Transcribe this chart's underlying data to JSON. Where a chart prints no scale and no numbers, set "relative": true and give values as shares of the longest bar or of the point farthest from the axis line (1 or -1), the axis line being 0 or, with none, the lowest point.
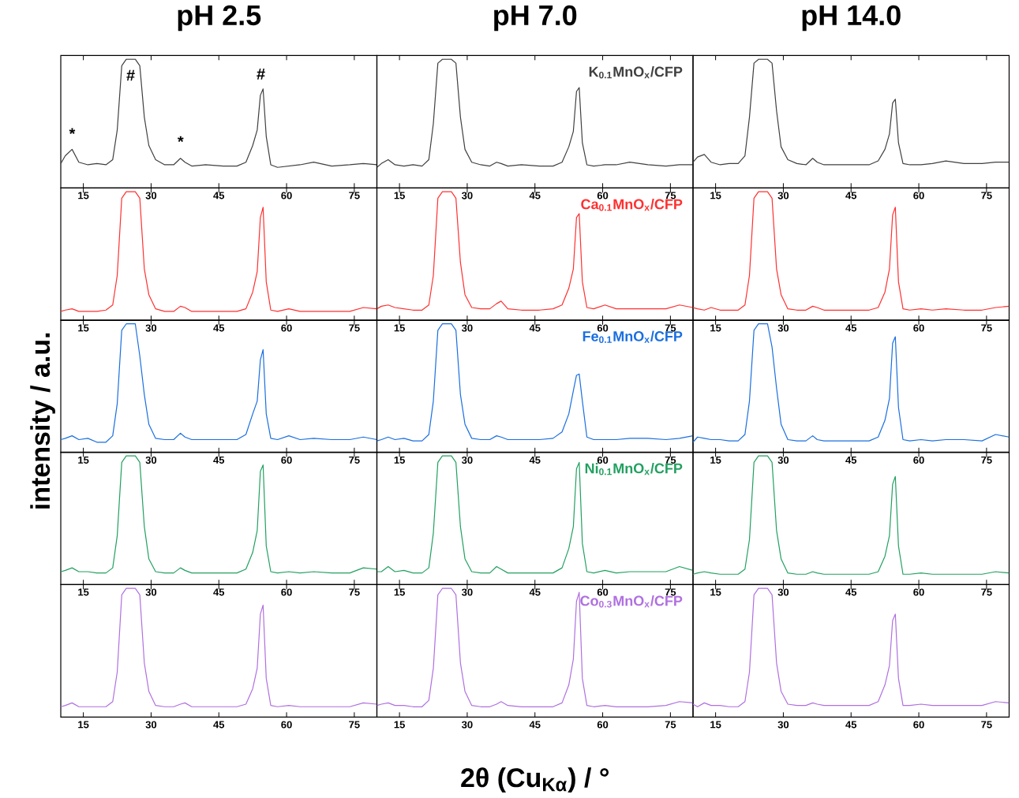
{
  "chart_data": [
    {
      "type": "line",
      "title": "pH 2.5",
      "relative": true,
      "tick_labels": "x",
      "xlim": [
        10,
        80
      ],
      "xticks": [
        15,
        30,
        45,
        60,
        75
      ],
      "x": [
        10,
        11,
        12.5,
        14,
        16,
        18,
        20,
        21.5,
        22.5,
        23.5,
        24.5,
        25.5,
        26.5,
        27.5,
        28.5,
        29.5,
        31,
        33,
        35,
        36.5,
        37.5,
        39,
        42,
        46,
        49,
        51,
        52.5,
        53.5,
        54.2,
        54.8,
        55.5,
        56.5,
        58,
        60.5,
        63,
        66,
        70,
        74,
        77,
        80
      ],
      "annotations": [
        "*",
        "#",
        "*",
        "#"
      ],
      "series": [
        {
          "color": "#404040",
          "values": [
            0.19,
            0.25,
            0.3,
            0.2,
            0.18,
            0.19,
            0.18,
            0.22,
            0.45,
            0.95,
            1,
            1,
            1,
            0.95,
            0.55,
            0.33,
            0.22,
            0.18,
            0.18,
            0.23,
            0.2,
            0.17,
            0.18,
            0.17,
            0.17,
            0.2,
            0.33,
            0.45,
            0.72,
            0.77,
            0.4,
            0.18,
            0.16,
            0.17,
            0.18,
            0.2,
            0.17,
            0.18,
            0.19,
            0.18
          ]
        }
      ]
    },
    {
      "type": "line",
      "title": "pH 7.0",
      "relative": true,
      "tick_labels": "x",
      "xlim": [
        10,
        80
      ],
      "xticks": [
        15,
        30,
        45,
        60,
        75
      ],
      "x": [
        10,
        11,
        12.5,
        14,
        16,
        18,
        20,
        21.5,
        22.5,
        23.5,
        24.5,
        25.5,
        26.5,
        27.5,
        28.5,
        29.5,
        31,
        33,
        35,
        36.5,
        37.5,
        39,
        42,
        46,
        49,
        51,
        52.5,
        53.5,
        54.2,
        54.8,
        55.5,
        56.5,
        58,
        60.5,
        63,
        66,
        70,
        74,
        77,
        80
      ],
      "series": [
        {
          "name": "K$_{0.1}$MnO$_{x}$/CFP",
          "color": "#404040",
          "values": [
            0.16,
            0.19,
            0.22,
            0.18,
            0.17,
            0.18,
            0.17,
            0.22,
            0.5,
            0.97,
            1,
            1,
            1,
            0.97,
            0.55,
            0.3,
            0.2,
            0.18,
            0.17,
            0.2,
            0.19,
            0.17,
            0.18,
            0.17,
            0.17,
            0.2,
            0.32,
            0.44,
            0.75,
            0.78,
            0.35,
            0.18,
            0.17,
            0.18,
            0.18,
            0.2,
            0.18,
            0.17,
            0.18,
            0.18
          ]
        }
      ]
    },
    {
      "type": "line",
      "title": "pH 14.0",
      "relative": true,
      "tick_labels": "x",
      "xlim": [
        10,
        80
      ],
      "xticks": [
        15,
        30,
        45,
        60,
        75
      ],
      "x": [
        10,
        11,
        12.5,
        14,
        16,
        18,
        20,
        21.5,
        22.5,
        23.5,
        24.5,
        25.5,
        26.5,
        27.5,
        28.5,
        29.5,
        31,
        33,
        35,
        36.5,
        37.5,
        39,
        42,
        46,
        49,
        51,
        52.5,
        53.5,
        54.2,
        54.8,
        55.5,
        56.5,
        58,
        60.5,
        63,
        66,
        70,
        74,
        77,
        80
      ],
      "series": [
        {
          "color": "#404040",
          "values": [
            0.2,
            0.24,
            0.26,
            0.2,
            0.18,
            0.19,
            0.19,
            0.25,
            0.55,
            0.97,
            1,
            1,
            1,
            0.97,
            0.6,
            0.32,
            0.22,
            0.19,
            0.18,
            0.23,
            0.2,
            0.18,
            0.18,
            0.18,
            0.18,
            0.21,
            0.3,
            0.42,
            0.66,
            0.69,
            0.35,
            0.19,
            0.18,
            0.18,
            0.19,
            0.21,
            0.19,
            0.19,
            0.2,
            0.2
          ]
        }
      ]
    },
    {
      "type": "line",
      "relative": true,
      "tick_labels": "x",
      "xlim": [
        10,
        80
      ],
      "xticks": [
        15,
        30,
        45,
        60,
        75
      ],
      "x": [
        10,
        11,
        12.5,
        14,
        16,
        18,
        20,
        21.5,
        22.5,
        23.5,
        24.5,
        25.5,
        26.5,
        27.5,
        28.5,
        29.5,
        31,
        33,
        35,
        36.5,
        37.5,
        39,
        42,
        46,
        49,
        51,
        52.5,
        53.5,
        54.2,
        54.8,
        55.5,
        56.5,
        58,
        60.5,
        63,
        66,
        70,
        74,
        77,
        80
      ],
      "series": [
        {
          "color": "#ff3030",
          "values": [
            0.07,
            0.08,
            0.09,
            0.07,
            0.07,
            0.07,
            0.08,
            0.12,
            0.35,
            0.95,
            1,
            1,
            1,
            0.95,
            0.4,
            0.2,
            0.09,
            0.07,
            0.07,
            0.11,
            0.1,
            0.07,
            0.07,
            0.07,
            0.07,
            0.09,
            0.22,
            0.38,
            0.8,
            0.88,
            0.3,
            0.08,
            0.07,
            0.09,
            0.07,
            0.07,
            0.07,
            0.07,
            0.1,
            0.09
          ]
        }
      ]
    },
    {
      "type": "line",
      "relative": true,
      "tick_labels": "x",
      "xlim": [
        10,
        80
      ],
      "xticks": [
        15,
        30,
        45,
        60,
        75
      ],
      "x": [
        10,
        11,
        12.5,
        14,
        16,
        18,
        20,
        21.5,
        22.5,
        23.5,
        24.5,
        25.5,
        26.5,
        27.5,
        28.5,
        29.5,
        31,
        33,
        35,
        36.5,
        37.5,
        39,
        42,
        46,
        49,
        51,
        52.5,
        53.5,
        54.2,
        54.8,
        55.5,
        56.5,
        58,
        60.5,
        63,
        66,
        70,
        74,
        77,
        80
      ],
      "series": [
        {
          "name": "Ca$_{0.1}$MnO$_{x}$/CFP",
          "color": "#ff3030",
          "values": [
            0.09,
            0.11,
            0.12,
            0.1,
            0.09,
            0.08,
            0.08,
            0.12,
            0.35,
            0.95,
            1,
            1,
            1,
            0.95,
            0.45,
            0.2,
            0.1,
            0.09,
            0.09,
            0.13,
            0.15,
            0.09,
            0.08,
            0.08,
            0.09,
            0.12,
            0.25,
            0.4,
            0.8,
            0.83,
            0.3,
            0.1,
            0.09,
            0.12,
            0.09,
            0.09,
            0.09,
            0.09,
            0.12,
            0.1
          ]
        }
      ]
    },
    {
      "type": "line",
      "relative": true,
      "tick_labels": "x",
      "xlim": [
        10,
        80
      ],
      "xticks": [
        15,
        30,
        45,
        60,
        75
      ],
      "x": [
        10,
        11,
        12.5,
        14,
        16,
        18,
        20,
        21.5,
        22.5,
        23.5,
        24.5,
        25.5,
        26.5,
        27.5,
        28.5,
        29.5,
        31,
        33,
        35,
        36.5,
        37.5,
        39,
        42,
        46,
        49,
        51,
        52.5,
        53.5,
        54.2,
        54.8,
        55.5,
        56.5,
        58,
        60.5,
        63,
        66,
        70,
        74,
        77,
        80
      ],
      "series": [
        {
          "color": "#ff3030",
          "values": [
            0.1,
            0.09,
            0.08,
            0.1,
            0.08,
            0.08,
            0.08,
            0.12,
            0.35,
            0.95,
            1,
            1,
            1,
            0.95,
            0.4,
            0.2,
            0.09,
            0.08,
            0.08,
            0.11,
            0.1,
            0.08,
            0.08,
            0.08,
            0.08,
            0.1,
            0.22,
            0.4,
            0.82,
            0.88,
            0.3,
            0.09,
            0.08,
            0.09,
            0.08,
            0.09,
            0.08,
            0.08,
            0.1,
            0.11
          ]
        }
      ]
    },
    {
      "type": "line",
      "ylabel": "intensity / a.u.",
      "relative": true,
      "tick_labels": "x",
      "xlim": [
        10,
        80
      ],
      "xticks": [
        15,
        30,
        45,
        60,
        75
      ],
      "x": [
        10,
        11,
        12.5,
        14,
        16,
        18,
        20,
        21.5,
        22.5,
        23.5,
        24.5,
        25.5,
        26.5,
        27.5,
        28.5,
        29.5,
        31,
        33,
        35,
        36.5,
        37.5,
        39,
        42,
        46,
        49,
        51,
        52.5,
        53.5,
        54.2,
        54.8,
        55.5,
        56.5,
        58,
        60.5,
        63,
        66,
        70,
        74,
        77,
        80
      ],
      "series": [
        {
          "color": "#1a6fe0",
          "values": [
            0.1,
            0.11,
            0.13,
            0.1,
            0.11,
            0.08,
            0.08,
            0.13,
            0.38,
            0.95,
            1,
            1,
            1,
            0.75,
            0.45,
            0.22,
            0.11,
            0.1,
            0.1,
            0.15,
            0.12,
            0.1,
            0.1,
            0.1,
            0.1,
            0.14,
            0.3,
            0.4,
            0.72,
            0.8,
            0.3,
            0.11,
            0.1,
            0.13,
            0.1,
            0.11,
            0.1,
            0.1,
            0.12,
            0.1
          ]
        }
      ]
    },
    {
      "type": "line",
      "relative": true,
      "tick_labels": "x",
      "xlim": [
        10,
        80
      ],
      "xticks": [
        15,
        30,
        45,
        60,
        75
      ],
      "x": [
        10,
        11,
        12.5,
        14,
        16,
        18,
        20,
        21.5,
        22.5,
        23.5,
        24.5,
        25.5,
        26.5,
        27.5,
        28.5,
        29.5,
        31,
        33,
        35,
        36.5,
        37.5,
        39,
        42,
        46,
        49,
        51,
        52.5,
        53.5,
        54.2,
        54.8,
        55.5,
        56.5,
        58,
        60.5,
        63,
        66,
        70,
        74,
        77,
        80
      ],
      "series": [
        {
          "name": "Fe$_{0.1}$MnO$_{x}$/CFP",
          "color": "#1a6fe0",
          "values": [
            0.09,
            0.1,
            0.12,
            0.1,
            0.11,
            0.09,
            0.09,
            0.14,
            0.4,
            0.95,
            1,
            1,
            1,
            0.95,
            0.45,
            0.22,
            0.11,
            0.1,
            0.1,
            0.13,
            0.12,
            0.1,
            0.1,
            0.1,
            0.11,
            0.16,
            0.3,
            0.48,
            0.6,
            0.61,
            0.4,
            0.12,
            0.1,
            0.1,
            0.1,
            0.11,
            0.11,
            0.1,
            0.11,
            0.13
          ]
        }
      ]
    },
    {
      "type": "line",
      "relative": true,
      "tick_labels": "x",
      "xlim": [
        10,
        80
      ],
      "xticks": [
        15,
        30,
        45,
        60,
        75
      ],
      "x": [
        10,
        11,
        12.5,
        14,
        16,
        18,
        20,
        21.5,
        22.5,
        23.5,
        24.5,
        25.5,
        26.5,
        27.5,
        28.5,
        29.5,
        31,
        33,
        35,
        36.5,
        37.5,
        39,
        42,
        46,
        49,
        51,
        52.5,
        53.5,
        54.2,
        54.8,
        55.5,
        56.5,
        58,
        60.5,
        63,
        66,
        70,
        74,
        77,
        80
      ],
      "series": [
        {
          "color": "#1a6fe0",
          "values": [
            0.08,
            0.12,
            0.11,
            0.1,
            0.1,
            0.09,
            0.09,
            0.14,
            0.4,
            0.95,
            1,
            1,
            1,
            0.82,
            0.5,
            0.22,
            0.1,
            0.09,
            0.09,
            0.13,
            0.1,
            0.09,
            0.09,
            0.09,
            0.09,
            0.12,
            0.25,
            0.42,
            0.85,
            0.9,
            0.35,
            0.1,
            0.09,
            0.1,
            0.09,
            0.1,
            0.1,
            0.09,
            0.14,
            0.12
          ]
        }
      ]
    },
    {
      "type": "line",
      "relative": true,
      "tick_labels": "x",
      "xlim": [
        10,
        80
      ],
      "xticks": [
        15,
        30,
        45,
        60,
        75
      ],
      "x": [
        10,
        11,
        12.5,
        14,
        16,
        18,
        20,
        21.5,
        22.5,
        23.5,
        24.5,
        25.5,
        26.5,
        27.5,
        28.5,
        29.5,
        31,
        33,
        35,
        36.5,
        37.5,
        39,
        42,
        46,
        49,
        51,
        52.5,
        53.5,
        54.2,
        54.8,
        55.5,
        56.5,
        58,
        60.5,
        63,
        66,
        70,
        74,
        77,
        80
      ],
      "series": [
        {
          "color": "#22a060",
          "values": [
            0.1,
            0.11,
            0.13,
            0.1,
            0.1,
            0.09,
            0.09,
            0.13,
            0.38,
            0.95,
            1,
            1,
            1,
            0.95,
            0.45,
            0.2,
            0.1,
            0.09,
            0.09,
            0.13,
            0.11,
            0.09,
            0.09,
            0.09,
            0.09,
            0.12,
            0.25,
            0.42,
            0.88,
            0.93,
            0.3,
            0.1,
            0.09,
            0.1,
            0.09,
            0.1,
            0.09,
            0.09,
            0.13,
            0.12
          ]
        }
      ]
    },
    {
      "type": "line",
      "relative": true,
      "tick_labels": "x",
      "xlim": [
        10,
        80
      ],
      "xticks": [
        15,
        30,
        45,
        60,
        75
      ],
      "x": [
        10,
        11,
        12.5,
        14,
        16,
        18,
        20,
        21.5,
        22.5,
        23.5,
        24.5,
        25.5,
        26.5,
        27.5,
        28.5,
        29.5,
        31,
        33,
        35,
        36.5,
        37.5,
        39,
        42,
        46,
        49,
        51,
        52.5,
        53.5,
        54.2,
        54.8,
        55.5,
        56.5,
        58,
        60.5,
        63,
        66,
        70,
        74,
        77,
        80
      ],
      "series": [
        {
          "name": "Ni$_{0.1}$MnO$_{x}$/CFP",
          "color": "#22a060",
          "values": [
            0.1,
            0.1,
            0.14,
            0.1,
            0.11,
            0.09,
            0.09,
            0.13,
            0.4,
            0.95,
            1,
            1,
            1,
            0.95,
            0.45,
            0.2,
            0.1,
            0.09,
            0.09,
            0.14,
            0.12,
            0.09,
            0.09,
            0.09,
            0.09,
            0.13,
            0.28,
            0.45,
            0.9,
            0.95,
            0.32,
            0.1,
            0.09,
            0.11,
            0.09,
            0.1,
            0.1,
            0.1,
            0.14,
            0.11
          ]
        }
      ]
    },
    {
      "type": "line",
      "relative": true,
      "tick_labels": "x",
      "xlim": [
        10,
        80
      ],
      "xticks": [
        15,
        30,
        45,
        60,
        75
      ],
      "x": [
        10,
        11,
        12.5,
        14,
        16,
        18,
        20,
        21.5,
        22.5,
        23.5,
        24.5,
        25.5,
        26.5,
        27.5,
        28.5,
        29.5,
        31,
        33,
        35,
        36.5,
        37.5,
        39,
        42,
        46,
        49,
        51,
        52.5,
        53.5,
        54.2,
        54.8,
        55.5,
        56.5,
        58,
        60.5,
        63,
        66,
        70,
        74,
        77,
        80
      ],
      "series": [
        {
          "color": "#22a060",
          "values": [
            0.08,
            0.09,
            0.1,
            0.09,
            0.08,
            0.08,
            0.08,
            0.12,
            0.35,
            0.95,
            1,
            1,
            1,
            0.95,
            0.42,
            0.2,
            0.09,
            0.08,
            0.08,
            0.1,
            0.09,
            0.08,
            0.08,
            0.08,
            0.08,
            0.1,
            0.22,
            0.38,
            0.78,
            0.84,
            0.3,
            0.08,
            0.08,
            0.09,
            0.08,
            0.08,
            0.08,
            0.08,
            0.1,
            0.09
          ]
        }
      ]
    },
    {
      "type": "line",
      "relative": true,
      "tick_labels": "x",
      "xlim": [
        10,
        80
      ],
      "xticks": [
        15,
        30,
        45,
        60,
        75
      ],
      "x": [
        10,
        11,
        12.5,
        14,
        16,
        18,
        20,
        21.5,
        22.5,
        23.5,
        24.5,
        25.5,
        26.5,
        27.5,
        28.5,
        29.5,
        31,
        33,
        35,
        36.5,
        37.5,
        39,
        42,
        46,
        49,
        51,
        52.5,
        53.5,
        54.2,
        54.8,
        55.5,
        56.5,
        58,
        60.5,
        63,
        66,
        70,
        74,
        77,
        80
      ],
      "series": [
        {
          "color": "#b070e0",
          "values": [
            0.08,
            0.09,
            0.11,
            0.08,
            0.08,
            0.08,
            0.08,
            0.12,
            0.35,
            0.95,
            1,
            1,
            1,
            0.95,
            0.42,
            0.2,
            0.09,
            0.08,
            0.08,
            0.1,
            0.11,
            0.08,
            0.08,
            0.08,
            0.08,
            0.1,
            0.22,
            0.38,
            0.8,
            0.87,
            0.3,
            0.09,
            0.08,
            0.09,
            0.08,
            0.08,
            0.08,
            0.08,
            0.11,
            0.1
          ]
        }
      ]
    },
    {
      "type": "line",
      "xlabel": "2θ (Cu$_{Kα}$) / °",
      "relative": true,
      "tick_labels": "x",
      "xlim": [
        10,
        80
      ],
      "xticks": [
        15,
        30,
        45,
        60,
        75
      ],
      "x": [
        10,
        11,
        12.5,
        14,
        16,
        18,
        20,
        21.5,
        22.5,
        23.5,
        24.5,
        25.5,
        26.5,
        27.5,
        28.5,
        29.5,
        31,
        33,
        35,
        36.5,
        37.5,
        39,
        42,
        46,
        49,
        51,
        52.5,
        53.5,
        54.2,
        54.8,
        55.5,
        56.5,
        58,
        60.5,
        63,
        66,
        70,
        74,
        77,
        80
      ],
      "series": [
        {
          "name": "Co$_{0.3}$MnO$_{x}$/CFP",
          "color": "#b070e0",
          "values": [
            0.09,
            0.1,
            0.11,
            0.09,
            0.09,
            0.08,
            0.08,
            0.13,
            0.38,
            0.95,
            1,
            1,
            1,
            0.95,
            0.42,
            0.2,
            0.09,
            0.08,
            0.08,
            0.1,
            0.12,
            0.09,
            0.08,
            0.08,
            0.08,
            0.11,
            0.25,
            0.45,
            0.9,
            0.97,
            0.3,
            0.09,
            0.08,
            0.09,
            0.08,
            0.08,
            0.08,
            0.09,
            0.12,
            0.11
          ]
        }
      ]
    },
    {
      "type": "line",
      "relative": true,
      "tick_labels": "x",
      "xlim": [
        10,
        80
      ],
      "xticks": [
        15,
        30,
        45,
        60,
        75
      ],
      "x": [
        10,
        11,
        12.5,
        14,
        16,
        18,
        20,
        21.5,
        22.5,
        23.5,
        24.5,
        25.5,
        26.5,
        27.5,
        28.5,
        29.5,
        31,
        33,
        35,
        36.5,
        37.5,
        39,
        42,
        46,
        49,
        51,
        52.5,
        53.5,
        54.2,
        54.8,
        55.5,
        56.5,
        58,
        60.5,
        63,
        66,
        70,
        74,
        77,
        80
      ],
      "series": [
        {
          "color": "#b070e0",
          "values": [
            0.1,
            0.08,
            0.11,
            0.09,
            0.09,
            0.08,
            0.08,
            0.12,
            0.35,
            0.95,
            1,
            1,
            1,
            0.95,
            0.42,
            0.2,
            0.1,
            0.09,
            0.09,
            0.11,
            0.1,
            0.09,
            0.09,
            0.09,
            0.09,
            0.12,
            0.25,
            0.4,
            0.75,
            0.8,
            0.3,
            0.09,
            0.09,
            0.1,
            0.09,
            0.09,
            0.09,
            0.09,
            0.12,
            0.11
          ]
        }
      ]
    }
  ]
}
